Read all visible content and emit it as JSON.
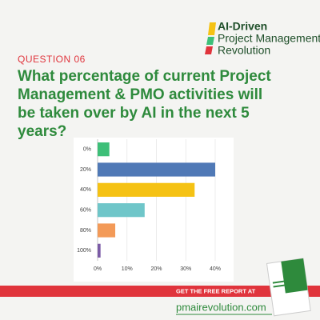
{
  "header": {
    "logo": [
      "AI-Driven",
      "Project Management",
      "Revolution"
    ],
    "label": "QUESTION 06"
  },
  "chart_data": {
    "type": "bar",
    "orientation": "horizontal",
    "title": "What percentage of current Project Management & PMO activities will be taken over by AI in the next 5 years?",
    "categories": [
      "0%",
      "20%",
      "40%",
      "60%",
      "80%",
      "100%"
    ],
    "values": [
      4,
      40,
      33,
      16,
      6,
      1
    ],
    "colors": [
      "#3dbf78",
      "#5079b6",
      "#f5c214",
      "#6fc6c9",
      "#f39a58",
      "#7b5ba6"
    ],
    "xlim": [
      0,
      40
    ],
    "xticks": [
      {
        "value": 0,
        "label": "0%"
      },
      {
        "value": 10,
        "label": "10%"
      },
      {
        "value": 20,
        "label": "20%"
      },
      {
        "value": 30,
        "label": "30%"
      },
      {
        "value": 40,
        "label": "40%"
      }
    ],
    "grid": true
  },
  "footer": {
    "cta": "GET THE FREE REPORT AT",
    "url": "pmairevolution.com"
  }
}
